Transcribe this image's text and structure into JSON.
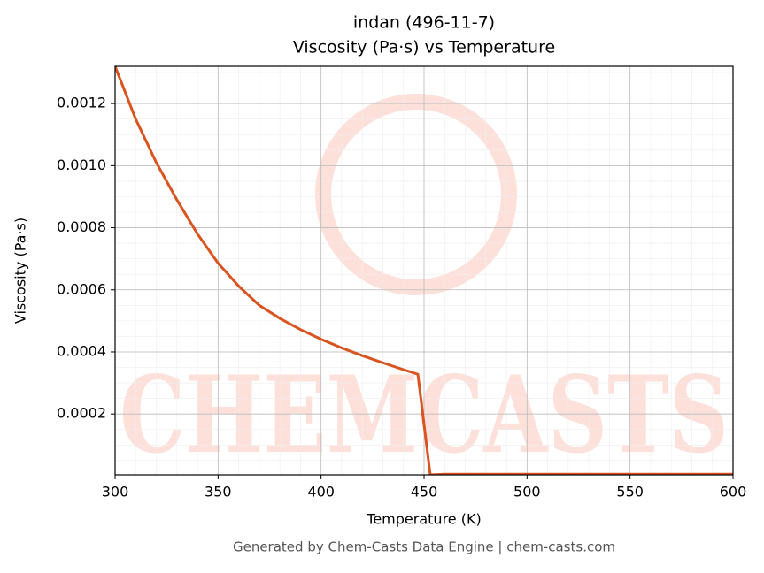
{
  "chart_data": {
    "type": "line",
    "title": "indan (496-11-7)",
    "subtitle": "Viscosity (Pa·s) vs Temperature",
    "x_label": "Temperature (K)",
    "y_label": "Viscosity (Pa·s)",
    "footer": "Generated by Chem-Casts Data Engine | chem-casts.com",
    "watermark": "CHEMCASTS",
    "x": [
      300,
      310,
      320,
      330,
      340,
      350,
      360,
      370,
      380,
      390,
      400,
      410,
      420,
      430,
      440,
      447,
      453,
      460,
      500,
      550,
      600
    ],
    "series": [
      {
        "name": "Viscosity",
        "color": "#d95420",
        "values": [
          0.00132,
          0.00115,
          0.00101,
          0.00089,
          0.00078,
          0.000686,
          0.000612,
          0.00055,
          0.000508,
          0.000472,
          0.000441,
          0.000413,
          0.000388,
          0.000365,
          0.000343,
          0.000328,
          4e-06,
          6e-06,
          6e-06,
          6e-06,
          6e-06
        ]
      }
    ],
    "xlim": [
      300,
      600
    ],
    "xticks": [
      300,
      350,
      400,
      450,
      500,
      550,
      600
    ],
    "ylim": [
      4e-06,
      0.00132
    ],
    "yticks": [
      0.0002,
      0.0004,
      0.0006,
      0.0008,
      {
        "value": 0.001,
        "label": "0.0010"
      },
      0.0012
    ],
    "grid": true
  }
}
